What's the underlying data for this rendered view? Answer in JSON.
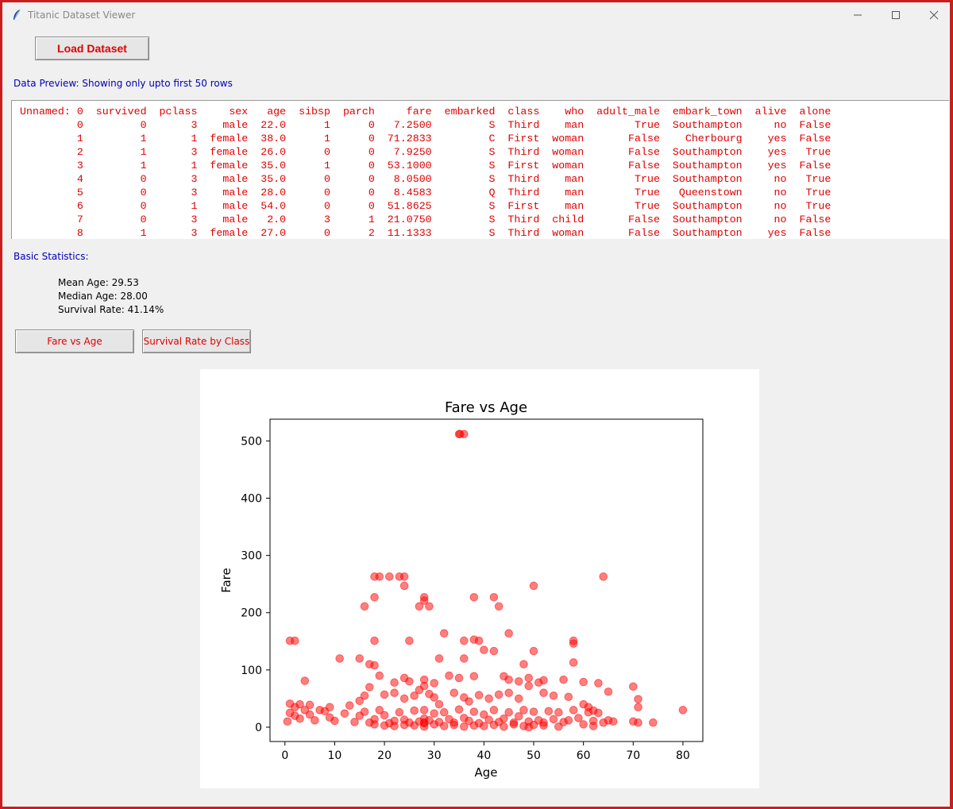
{
  "window": {
    "title": "Titanic Dataset Viewer",
    "controls": [
      "minimize",
      "maximize",
      "close"
    ]
  },
  "toolbar": {
    "load_label": "Load Dataset"
  },
  "preview": {
    "label": "Data Preview:  Showing only upto first 50 rows",
    "columns": [
      "Unnamed: 0",
      "survived",
      "pclass",
      "sex",
      "age",
      "sibsp",
      "parch",
      "fare",
      "embarked",
      "class",
      "who",
      "adult_male",
      "embark_town",
      "alive",
      "alone"
    ],
    "rows": [
      [
        "0",
        "0",
        "3",
        "male",
        "22.0",
        "1",
        "0",
        "7.2500",
        "S",
        "Third",
        "man",
        "True",
        "Southampton",
        "no",
        "False"
      ],
      [
        "1",
        "1",
        "1",
        "female",
        "38.0",
        "1",
        "0",
        "71.2833",
        "C",
        "First",
        "woman",
        "False",
        "Cherbourg",
        "yes",
        "False"
      ],
      [
        "2",
        "1",
        "3",
        "female",
        "26.0",
        "0",
        "0",
        "7.9250",
        "S",
        "Third",
        "woman",
        "False",
        "Southampton",
        "yes",
        "True"
      ],
      [
        "3",
        "1",
        "1",
        "female",
        "35.0",
        "1",
        "0",
        "53.1000",
        "S",
        "First",
        "woman",
        "False",
        "Southampton",
        "yes",
        "False"
      ],
      [
        "4",
        "0",
        "3",
        "male",
        "35.0",
        "0",
        "0",
        "8.0500",
        "S",
        "Third",
        "man",
        "True",
        "Southampton",
        "no",
        "True"
      ],
      [
        "5",
        "0",
        "3",
        "male",
        "28.0",
        "0",
        "0",
        "8.4583",
        "Q",
        "Third",
        "man",
        "True",
        "Queenstown",
        "no",
        "True"
      ],
      [
        "6",
        "0",
        "1",
        "male",
        "54.0",
        "0",
        "0",
        "51.8625",
        "S",
        "First",
        "man",
        "True",
        "Southampton",
        "no",
        "True"
      ],
      [
        "7",
        "0",
        "3",
        "male",
        "2.0",
        "3",
        "1",
        "21.0750",
        "S",
        "Third",
        "child",
        "False",
        "Southampton",
        "no",
        "False"
      ],
      [
        "8",
        "1",
        "3",
        "female",
        "27.0",
        "0",
        "2",
        "11.1333",
        "S",
        "Third",
        "woman",
        "False",
        "Southampton",
        "yes",
        "False"
      ]
    ]
  },
  "stats": {
    "label": "Basic Statistics:",
    "mean_age": "Mean Age: 29.53",
    "median_age": "Median Age: 28.00",
    "survival_rate": "Survival Rate: 41.14%"
  },
  "buttons": {
    "fare_vs_age": "Fare vs Age",
    "survival_by_class": "Survival Rate by Class"
  },
  "colors": {
    "accent": "#e00000",
    "label_blue": "#0000b4",
    "point": "#ff0000"
  },
  "chart_data": {
    "type": "scatter",
    "title": "Fare vs Age",
    "xlabel": "Age",
    "ylabel": "Fare",
    "xlim": [
      -3,
      84
    ],
    "ylim": [
      -25,
      538
    ],
    "xticks": [
      0,
      10,
      20,
      30,
      40,
      50,
      60,
      70,
      80
    ],
    "yticks": [
      0,
      100,
      200,
      300,
      400,
      500
    ],
    "grid": false,
    "series": [
      {
        "color": "#ff0000",
        "alpha": 0.5,
        "points": [
          [
            35,
            512
          ],
          [
            36,
            512
          ],
          [
            35.2,
            512
          ],
          [
            18,
            263
          ],
          [
            19,
            263
          ],
          [
            21,
            263
          ],
          [
            23,
            263
          ],
          [
            24,
            263
          ],
          [
            64,
            263
          ],
          [
            18,
            227
          ],
          [
            28,
            227
          ],
          [
            38,
            227
          ],
          [
            42,
            227
          ],
          [
            24,
            247
          ],
          [
            50,
            247
          ],
          [
            16,
            211
          ],
          [
            27,
            211
          ],
          [
            29,
            211
          ],
          [
            43,
            211
          ],
          [
            28,
            221
          ],
          [
            32,
            164
          ],
          [
            45,
            164
          ],
          [
            1,
            151
          ],
          [
            2,
            151
          ],
          [
            18,
            151
          ],
          [
            25,
            151
          ],
          [
            36,
            151
          ],
          [
            39,
            151
          ],
          [
            58,
            151
          ],
          [
            58,
            146
          ],
          [
            17,
            110
          ],
          [
            18,
            108
          ],
          [
            11,
            120
          ],
          [
            15,
            120
          ],
          [
            31,
            120
          ],
          [
            36,
            120
          ],
          [
            40,
            135
          ],
          [
            48,
            110
          ],
          [
            58,
            113
          ],
          [
            42,
            133
          ],
          [
            50,
            133
          ],
          [
            38,
            153
          ],
          [
            4,
            81
          ],
          [
            19,
            90
          ],
          [
            22,
            78
          ],
          [
            24,
            86
          ],
          [
            25,
            80
          ],
          [
            28,
            83
          ],
          [
            30,
            77
          ],
          [
            33,
            90
          ],
          [
            35,
            86
          ],
          [
            38,
            89
          ],
          [
            44,
            89
          ],
          [
            45,
            83
          ],
          [
            47,
            80
          ],
          [
            49,
            86
          ],
          [
            51,
            78
          ],
          [
            52,
            82
          ],
          [
            56,
            83
          ],
          [
            60,
            79
          ],
          [
            63,
            77
          ],
          [
            70,
            71
          ],
          [
            1,
            41
          ],
          [
            2,
            35
          ],
          [
            3,
            40
          ],
          [
            5,
            39
          ],
          [
            7,
            30
          ],
          [
            9,
            35
          ],
          [
            13,
            38
          ],
          [
            15,
            46
          ],
          [
            16,
            55
          ],
          [
            17,
            70
          ],
          [
            20,
            57
          ],
          [
            22,
            60
          ],
          [
            24,
            50
          ],
          [
            26,
            55
          ],
          [
            27,
            65
          ],
          [
            28,
            72
          ],
          [
            29,
            58
          ],
          [
            30,
            52
          ],
          [
            31,
            40
          ],
          [
            34,
            60
          ],
          [
            36,
            52
          ],
          [
            37,
            45
          ],
          [
            39,
            56
          ],
          [
            41,
            50
          ],
          [
            43,
            57
          ],
          [
            45,
            60
          ],
          [
            47,
            50
          ],
          [
            49,
            72
          ],
          [
            52,
            60
          ],
          [
            54,
            55
          ],
          [
            57,
            53
          ],
          [
            60,
            40
          ],
          [
            61,
            35
          ],
          [
            62,
            29
          ],
          [
            65,
            62
          ],
          [
            71,
            49
          ],
          [
            71,
            35
          ],
          [
            80,
            30
          ],
          [
            0.5,
            10
          ],
          [
            1,
            25
          ],
          [
            2,
            20
          ],
          [
            3,
            15
          ],
          [
            4,
            30
          ],
          [
            5,
            22
          ],
          [
            6,
            12
          ],
          [
            8,
            28
          ],
          [
            9,
            17
          ],
          [
            10,
            11
          ],
          [
            12,
            24
          ],
          [
            14,
            9
          ],
          [
            15,
            20
          ],
          [
            16,
            27
          ],
          [
            17,
            8
          ],
          [
            18,
            14
          ],
          [
            19,
            30
          ],
          [
            20,
            21
          ],
          [
            21,
            7
          ],
          [
            22,
            11
          ],
          [
            23,
            26
          ],
          [
            24,
            13
          ],
          [
            25,
            8
          ],
          [
            26,
            29
          ],
          [
            27,
            10
          ],
          [
            28,
            15
          ],
          [
            28,
            8
          ],
          [
            28,
            7
          ],
          [
            28,
            30
          ],
          [
            29,
            12
          ],
          [
            30,
            24
          ],
          [
            31,
            9
          ],
          [
            32,
            26
          ],
          [
            33,
            14
          ],
          [
            34,
            8
          ],
          [
            35,
            31
          ],
          [
            36,
            16
          ],
          [
            37,
            11
          ],
          [
            38,
            27
          ],
          [
            39,
            7
          ],
          [
            40,
            22
          ],
          [
            41,
            13
          ],
          [
            42,
            30
          ],
          [
            43,
            9
          ],
          [
            44,
            15
          ],
          [
            45,
            26
          ],
          [
            46,
            8
          ],
          [
            47,
            19
          ],
          [
            48,
            30
          ],
          [
            49,
            10
          ],
          [
            50,
            27
          ],
          [
            51,
            12
          ],
          [
            52,
            8
          ],
          [
            53,
            28
          ],
          [
            54,
            14
          ],
          [
            55,
            26
          ],
          [
            56,
            9
          ],
          [
            57,
            12
          ],
          [
            58,
            30
          ],
          [
            59,
            16
          ],
          [
            61,
            26
          ],
          [
            62,
            11
          ],
          [
            63,
            25
          ],
          [
            64,
            8
          ],
          [
            65,
            12
          ],
          [
            66,
            10
          ],
          [
            70,
            10
          ],
          [
            71,
            8
          ],
          [
            74,
            8
          ],
          [
            18,
            5
          ],
          [
            20,
            3
          ],
          [
            22,
            2
          ],
          [
            24,
            4
          ],
          [
            26,
            3
          ],
          [
            28,
            1
          ],
          [
            30,
            5
          ],
          [
            32,
            2
          ],
          [
            34,
            4
          ],
          [
            36,
            1
          ],
          [
            38,
            3
          ],
          [
            40,
            2
          ],
          [
            42,
            4
          ],
          [
            44,
            1
          ],
          [
            46,
            5
          ],
          [
            48,
            2
          ],
          [
            49,
            0
          ],
          [
            50,
            4
          ],
          [
            52,
            3
          ],
          [
            55,
            1
          ],
          [
            60,
            5
          ],
          [
            62,
            2
          ]
        ]
      }
    ]
  }
}
